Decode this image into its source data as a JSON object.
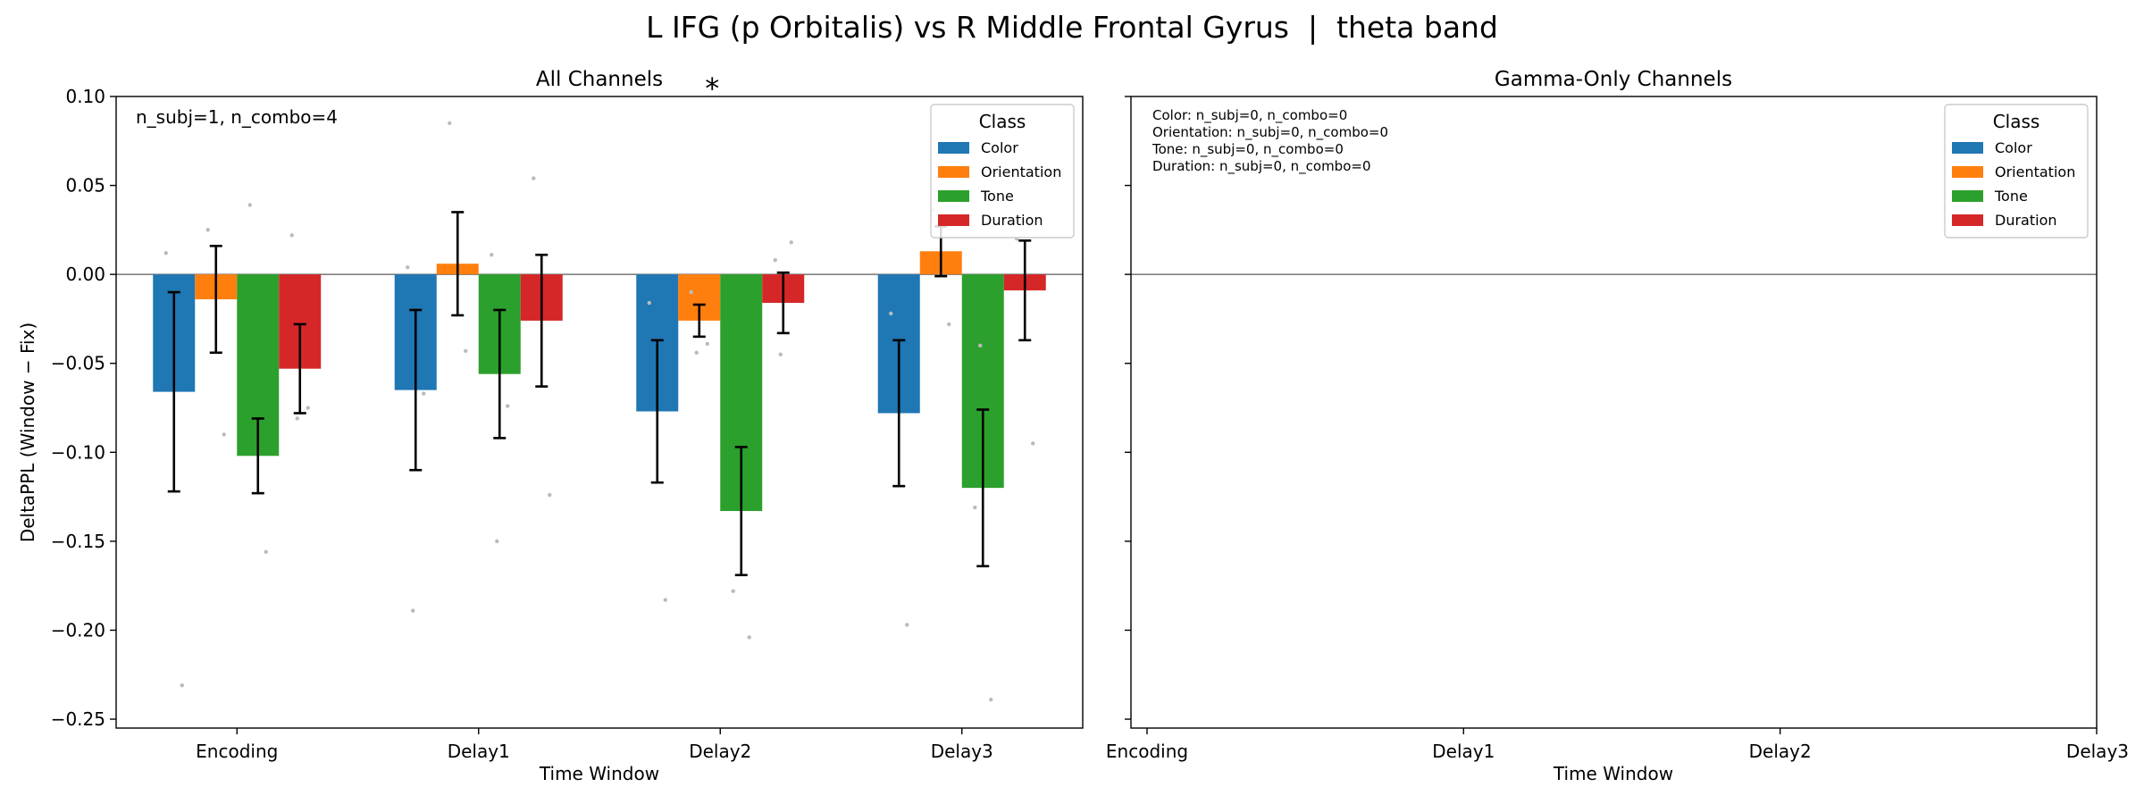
{
  "suptitle": "L IFG (p Orbitalis) vs R Middle Frontal Gyrus  |  theta band",
  "colors": {
    "Color": "#1f77b4",
    "Orientation": "#ff7f0e",
    "Tone": "#2ca02c",
    "Duration": "#d62728",
    "significance": "#ff0000",
    "scatter": "#bbbbbb"
  },
  "chart_data": [
    {
      "type": "bar",
      "title": "All Channels",
      "xlabel": "Time Window",
      "ylabel": "DeltaPPL (Window − Fix)",
      "ylim": [
        -0.255,
        0.1
      ],
      "yticks": [
        0.1,
        0.05,
        0.0,
        -0.05,
        -0.1,
        -0.15,
        -0.2,
        -0.25
      ],
      "ytick_labels": [
        "0.10",
        "0.05",
        "0.00",
        "−0.05",
        "−0.10",
        "−0.15",
        "−0.20",
        "−0.25"
      ],
      "categories": [
        "Encoding",
        "Delay1",
        "Delay2",
        "Delay3"
      ],
      "annotation": "n_subj=1, n_combo=4",
      "significance": {
        "category": "Delay2",
        "label": "*"
      },
      "legend": {
        "title": "Class",
        "position": "top-right",
        "entries": [
          "Color",
          "Orientation",
          "Tone",
          "Duration"
        ]
      },
      "series": [
        {
          "name": "Color",
          "values": [
            -0.066,
            -0.065,
            -0.077,
            -0.078
          ],
          "errors": [
            0.056,
            0.045,
            0.04,
            0.041
          ]
        },
        {
          "name": "Orientation",
          "values": [
            -0.014,
            0.006,
            -0.026,
            0.013
          ],
          "errors": [
            0.03,
            0.029,
            0.009,
            0.014
          ]
        },
        {
          "name": "Tone",
          "values": [
            -0.102,
            -0.056,
            -0.133,
            -0.12
          ],
          "errors": [
            0.021,
            0.036,
            0.036,
            0.044
          ]
        },
        {
          "name": "Duration",
          "values": [
            -0.053,
            -0.026,
            -0.016,
            -0.009
          ],
          "errors": [
            0.025,
            0.037,
            0.017,
            0.028
          ]
        }
      ],
      "points": [
        {
          "category": 0,
          "series": 0,
          "values": [
            0.012,
            -0.231
          ]
        },
        {
          "category": 0,
          "series": 1,
          "values": [
            0.025,
            -0.09
          ]
        },
        {
          "category": 0,
          "series": 2,
          "values": [
            0.039,
            -0.156
          ]
        },
        {
          "category": 0,
          "series": 3,
          "values": [
            0.022,
            -0.075,
            -0.081
          ]
        },
        {
          "category": 1,
          "series": 0,
          "values": [
            0.004,
            -0.067,
            -0.189
          ]
        },
        {
          "category": 1,
          "series": 1,
          "values": [
            0.085,
            -0.043
          ]
        },
        {
          "category": 1,
          "series": 2,
          "values": [
            0.011,
            -0.074,
            -0.15
          ]
        },
        {
          "category": 1,
          "series": 3,
          "values": [
            0.054,
            -0.124
          ]
        },
        {
          "category": 2,
          "series": 0,
          "values": [
            -0.016,
            -0.183
          ]
        },
        {
          "category": 2,
          "series": 1,
          "values": [
            -0.01,
            -0.039,
            -0.044
          ]
        },
        {
          "category": 2,
          "series": 2,
          "values": [
            -0.178,
            -0.204
          ]
        },
        {
          "category": 2,
          "series": 3,
          "values": [
            0.008,
            0.018,
            -0.045
          ]
        },
        {
          "category": 3,
          "series": 0,
          "values": [
            -0.022,
            -0.197
          ]
        },
        {
          "category": 3,
          "series": 1,
          "values": [
            0.036,
            -0.028
          ]
        },
        {
          "category": 3,
          "series": 2,
          "values": [
            -0.131,
            -0.239,
            -0.04
          ]
        },
        {
          "category": 3,
          "series": 3,
          "values": [
            0.02,
            -0.095
          ]
        }
      ]
    },
    {
      "type": "bar",
      "title": "Gamma-Only Channels",
      "xlabel": "Time Window",
      "ylabel": "",
      "ylim": [
        -0.255,
        0.1
      ],
      "categories": [
        "Encoding",
        "Delay1",
        "Delay2",
        "Delay3"
      ],
      "annotation_lines": [
        "Color: n_subj=0, n_combo=0",
        "Orientation: n_subj=0, n_combo=0",
        "Tone: n_subj=0, n_combo=0",
        "Duration: n_subj=0, n_combo=0"
      ],
      "legend": {
        "title": "Class",
        "position": "top-right",
        "entries": [
          "Color",
          "Orientation",
          "Tone",
          "Duration"
        ]
      },
      "series": []
    }
  ]
}
